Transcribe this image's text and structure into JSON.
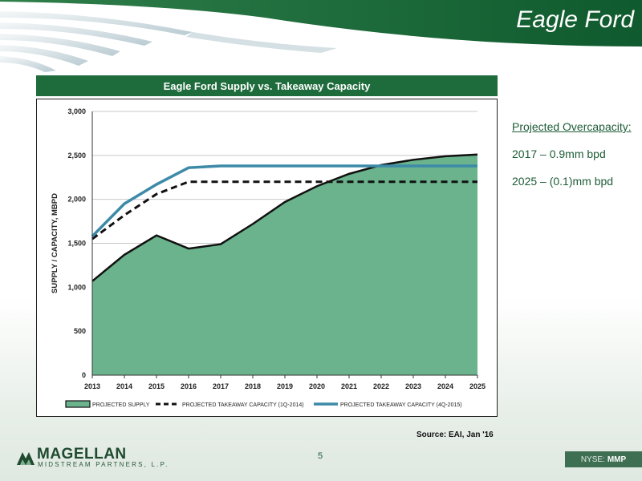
{
  "header": {
    "title": "Eagle Ford"
  },
  "chart_title": "Eagle Ford Supply vs. Takeaway Capacity",
  "colors": {
    "brand_green": "#1e6b3c",
    "supply_fill": "#6ab38c",
    "takeaway_2015": "#3c8aa8"
  },
  "chart_data": {
    "type": "area",
    "title": "Eagle Ford Supply vs. Takeaway Capacity",
    "ylabel": "SUPPLY / CAPACITY, MBPD",
    "xlabel": "",
    "ylim": [
      0,
      3000
    ],
    "yticks": [
      0,
      500,
      1000,
      1500,
      2000,
      2500,
      3000
    ],
    "ytick_labels": [
      "0",
      "500",
      "1,000",
      "1,500",
      "2,000",
      "2,500",
      "3,000"
    ],
    "x": [
      "2013",
      "2014",
      "2015",
      "2016",
      "2017",
      "2018",
      "2019",
      "2020",
      "2021",
      "2022",
      "2023",
      "2024",
      "2025"
    ],
    "grid": true,
    "legend_position": "bottom",
    "series": [
      {
        "name": "PROJECTED SUPPLY",
        "style": "area",
        "values": [
          1070,
          1370,
          1590,
          1440,
          1490,
          1720,
          1970,
          2150,
          2290,
          2390,
          2450,
          2490,
          2510
        ]
      },
      {
        "name": "PROJECTED TAKEAWAY CAPACITY (1Q-2014)",
        "style": "dashed",
        "values": [
          1550,
          1820,
          2060,
          2200,
          2200,
          2200,
          2200,
          2200,
          2200,
          2200,
          2200,
          2200,
          2200
        ]
      },
      {
        "name": "PROJECTED TAKEAWAY CAPACITY (4Q-2015)",
        "style": "line",
        "values": [
          1580,
          1950,
          2170,
          2360,
          2380,
          2380,
          2380,
          2380,
          2380,
          2380,
          2380,
          2380,
          2380
        ]
      }
    ]
  },
  "notes": {
    "heading": "Projected Overcapacity:",
    "items": [
      "2017 – 0.9mm bpd",
      "2025 – (0.1)mm bpd"
    ]
  },
  "source": "Source:  EAI, Jan '16",
  "page_number": "5",
  "logo": {
    "name": "MAGELLAN",
    "subtitle": "MIDSTREAM PARTNERS, L.P."
  },
  "ticker": {
    "exchange": "NYSE:",
    "symbol": "MMP"
  }
}
